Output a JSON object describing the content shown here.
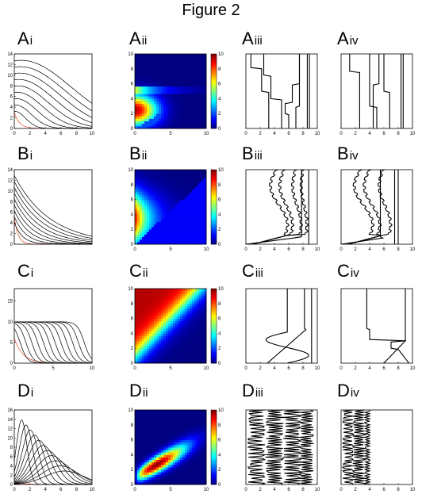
{
  "figure": {
    "title": "Figure 2"
  },
  "panel_labels": [
    {
      "main": "A",
      "sub": "i"
    },
    {
      "main": "A",
      "sub": "ii"
    },
    {
      "main": "A",
      "sub": "iii"
    },
    {
      "main": "A",
      "sub": "iv"
    },
    {
      "main": "B",
      "sub": "i"
    },
    {
      "main": "B",
      "sub": "ii"
    },
    {
      "main": "B",
      "sub": "iii"
    },
    {
      "main": "B",
      "sub": "iv"
    },
    {
      "main": "C",
      "sub": "i"
    },
    {
      "main": "C",
      "sub": "ii"
    },
    {
      "main": "C",
      "sub": "iii"
    },
    {
      "main": "C",
      "sub": "iv"
    },
    {
      "main": "D",
      "sub": "i"
    },
    {
      "main": "D",
      "sub": "ii"
    },
    {
      "main": "D",
      "sub": "iii"
    },
    {
      "main": "D",
      "sub": "iv"
    }
  ],
  "colors": {
    "highlight_curve": "#e8482a",
    "curve": "#000000",
    "axis": "#000000"
  },
  "chart_data": [
    {
      "panel": "Ai",
      "type": "line",
      "ylim": [
        0,
        14
      ],
      "xlim": [
        0,
        10
      ],
      "yticks": [
        0,
        2,
        4,
        6,
        8,
        10,
        12,
        14
      ],
      "xticks": [
        0,
        2,
        4,
        6,
        8,
        10
      ]
    },
    {
      "panel": "Aii",
      "type": "heatmap",
      "xlim": [
        0,
        10
      ],
      "ylim": [
        0,
        10
      ],
      "xticks": [
        0,
        5,
        10
      ],
      "yticks": [
        0,
        2,
        4,
        6,
        8,
        10
      ],
      "colorbar_ticks": [
        0,
        2,
        4,
        6,
        8,
        10
      ]
    },
    {
      "panel": "Aiii",
      "type": "line",
      "xticks": [
        0,
        2,
        4,
        6,
        8,
        10
      ]
    },
    {
      "panel": "Aiv",
      "type": "line",
      "xticks": [
        0,
        2,
        4,
        6,
        8,
        10
      ]
    },
    {
      "panel": "Bi",
      "type": "line",
      "ylim": [
        0,
        14
      ],
      "yticks": [
        0,
        2,
        4,
        6,
        8,
        10,
        12,
        14
      ]
    },
    {
      "panel": "Bii",
      "type": "heatmap",
      "xlim": [
        0,
        10
      ],
      "ylim": [
        0,
        10
      ],
      "xticks": [
        0,
        5,
        10
      ],
      "yticks": [
        0,
        2,
        4,
        6,
        8,
        10
      ],
      "colorbar_ticks": [
        0,
        2,
        4,
        6,
        8,
        10
      ]
    },
    {
      "panel": "Biii",
      "type": "line",
      "xticks": [
        0,
        2,
        4,
        6,
        8,
        10
      ]
    },
    {
      "panel": "Biv",
      "type": "line",
      "xticks": [
        0,
        2,
        4,
        6,
        8,
        10
      ]
    },
    {
      "panel": "Ci",
      "type": "line",
      "ylim": [
        0,
        18
      ],
      "xlim": [
        0,
        10
      ],
      "yticks": [
        0,
        5,
        10,
        15
      ],
      "xticks": [
        0,
        5,
        10
      ]
    },
    {
      "panel": "Cii",
      "type": "heatmap",
      "xlim": [
        0,
        10
      ],
      "ylim": [
        0,
        10
      ],
      "xticks": [
        0,
        5,
        10
      ],
      "yticks": [
        0,
        2,
        4,
        6,
        8,
        10
      ],
      "colorbar_ticks": [
        0,
        2,
        4,
        6,
        8,
        10
      ]
    },
    {
      "panel": "Ciii",
      "type": "line",
      "xticks": [
        0,
        2,
        4,
        6,
        8,
        10
      ]
    },
    {
      "panel": "Civ",
      "type": "line",
      "xticks": [
        0,
        2,
        4,
        6,
        8,
        10
      ]
    },
    {
      "panel": "Di",
      "type": "line",
      "ylim": [
        0,
        16
      ],
      "xlim": [
        0,
        10
      ],
      "yticks": [
        0,
        2,
        4,
        6,
        8,
        10,
        12,
        14,
        16
      ],
      "xticks": [
        0,
        2,
        4,
        6,
        8,
        10
      ]
    },
    {
      "panel": "Dii",
      "type": "heatmap",
      "xlim": [
        0,
        10
      ],
      "ylim": [
        0,
        10
      ],
      "xticks": [
        0,
        5,
        10
      ],
      "yticks": [
        0,
        2,
        4,
        6,
        8,
        10
      ],
      "colorbar_ticks": [
        0,
        2,
        4,
        6,
        8,
        10
      ]
    },
    {
      "panel": "Diii",
      "type": "line",
      "xticks": [
        0,
        2,
        4,
        6,
        8,
        10
      ]
    },
    {
      "panel": "Div",
      "type": "line",
      "xticks": [
        0,
        2,
        4,
        6,
        8,
        10
      ]
    }
  ]
}
